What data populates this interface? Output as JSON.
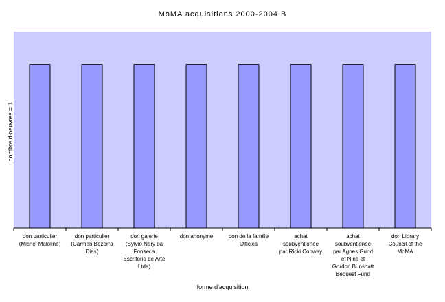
{
  "chart_data": {
    "type": "bar",
    "title": "MoMA acquisitions 2000-2004 B",
    "xlabel": "forme d'acquisition",
    "ylabel": "nombre d'oeuvres = 1",
    "categories": [
      [
        "don particulier",
        "(Michel Malolino)"
      ],
      [
        "don particulier",
        "(Carmen Bezerra",
        "Dias)"
      ],
      [
        "don galerie",
        "(Sylvio Nery da",
        "Fonseca",
        "Escritorio de Arte",
        "Ltda)"
      ],
      [
        "don anonyme"
      ],
      [
        "don de la famille",
        "Oiticica"
      ],
      [
        "achat",
        "soubventionée",
        "par Ricki Conway"
      ],
      [
        "achat",
        "soubventionée",
        "par Agnes Gund",
        "et Nina et",
        "Gordon Bunshaft",
        "Bequest Fund"
      ],
      [
        "don Library",
        "Council of the",
        "MoMA"
      ]
    ],
    "values": [
      1,
      1,
      1,
      1,
      1,
      1,
      1,
      1
    ],
    "ylim": [
      0,
      1.2
    ],
    "grid": false,
    "legend": "none",
    "colors": {
      "plot_background": "#ccccff",
      "bar_fill": "#9999ff",
      "bar_stroke": "#000000",
      "axis": "#000000"
    }
  }
}
